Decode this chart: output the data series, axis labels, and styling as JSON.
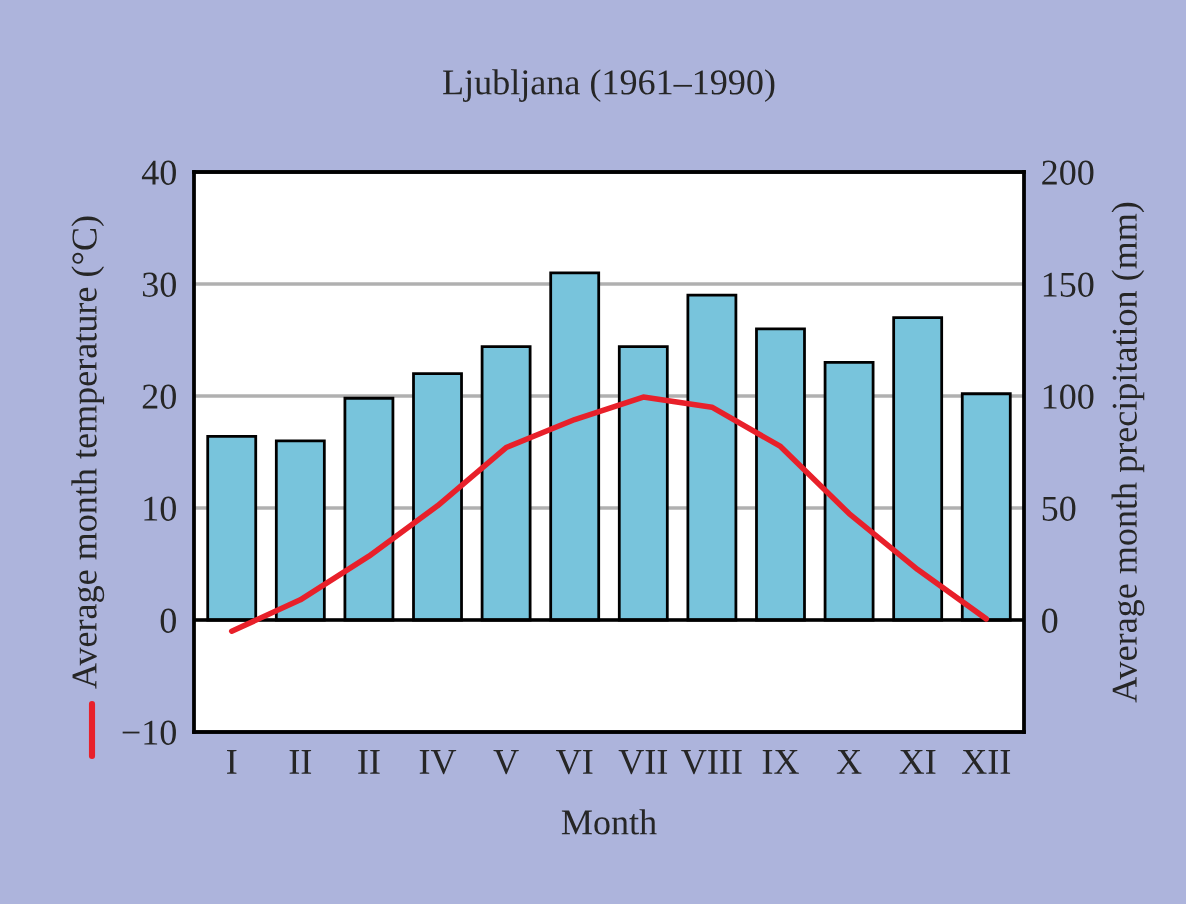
{
  "chart_data": {
    "type": "bar",
    "title": "Ljubljana (1961–1990)",
    "xlabel": "Month",
    "ylabel": "Average month temperature (°C)",
    "y2label": "Average month precipitation (mm)",
    "categories": [
      "I",
      "II",
      "II",
      "IV",
      "V",
      "VI",
      "VII",
      "VIII",
      "IX",
      "X",
      "XI",
      "XII"
    ],
    "series": [
      {
        "axis": "y2",
        "color": "#78c4dc",
        "values": [
          82,
          80,
          99,
          110,
          122,
          155,
          122,
          145,
          130,
          115,
          135,
          101
        ]
      },
      {
        "type": "line",
        "axis": "y",
        "color": "#e8202a",
        "values": [
          -1.0,
          1.8,
          5.7,
          10.2,
          15.4,
          17.9,
          19.9,
          19.0,
          15.5,
          9.5,
          4.5,
          0.1
        ]
      }
    ],
    "ylim": [
      -10,
      40
    ],
    "yticks": [
      {
        "value": -10,
        "label": "−10"
      },
      0,
      10,
      20,
      30,
      40
    ],
    "y2lim": [
      -50,
      200
    ],
    "y2ticks": [
      0,
      50,
      100,
      150,
      200
    ],
    "ref_lines": [
      {
        "axis": "y",
        "value": 0,
        "color": "#000000"
      }
    ],
    "grid": "y",
    "marker": "none",
    "line_style": "solid",
    "legend": false
  }
}
